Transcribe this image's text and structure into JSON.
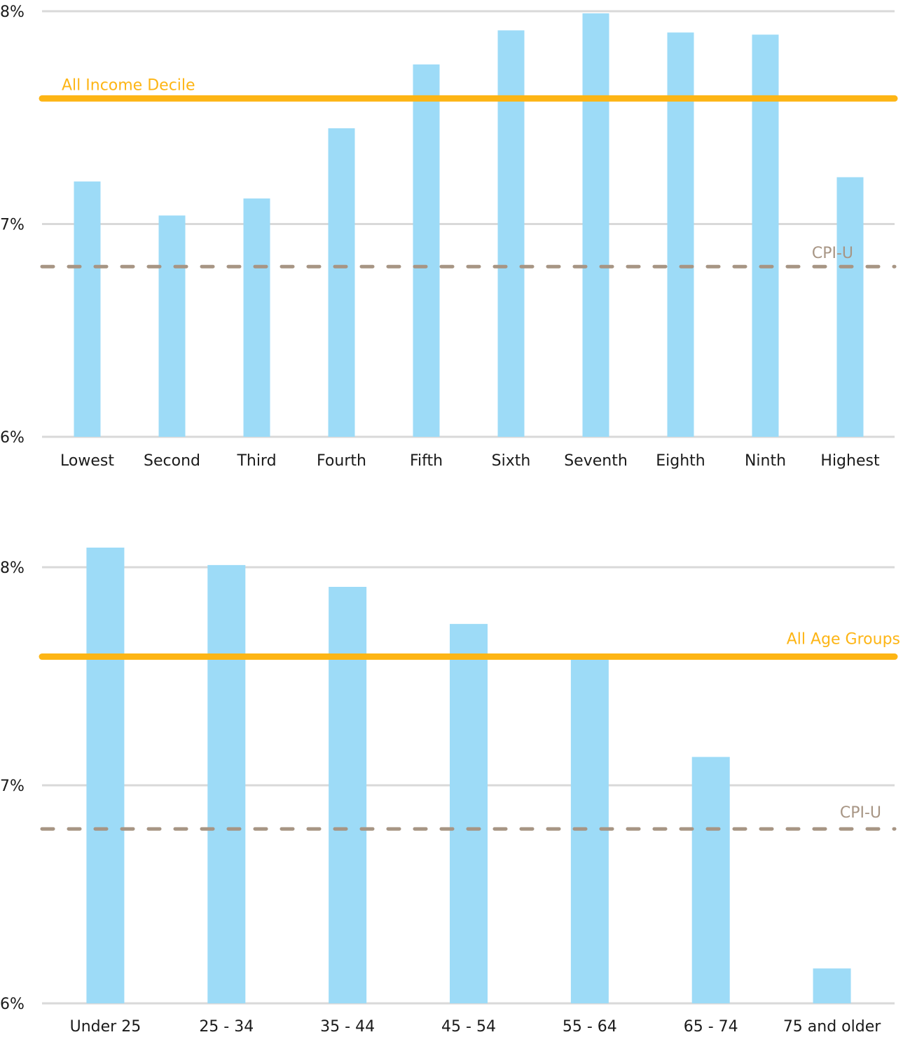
{
  "colors": {
    "bar": "#9DDBF7",
    "average_line": "#FDB515",
    "cpi_line": "#A79584",
    "grid": "#D9D9D9",
    "text": "#1a1a1a"
  },
  "chart_data": [
    {
      "type": "bar",
      "title": "",
      "xlabel": "",
      "ylabel": "",
      "ylim": [
        6,
        8
      ],
      "yticks": [
        6,
        7,
        8
      ],
      "ytick_labels": [
        "6%",
        "7%",
        "8%"
      ],
      "grid": true,
      "categories": [
        "Lowest",
        "Second",
        "Third",
        "Fourth",
        "Fifth",
        "Sixth",
        "Seventh",
        "Eighth",
        "Ninth",
        "Highest"
      ],
      "values": [
        7.2,
        7.04,
        7.12,
        7.45,
        7.75,
        7.91,
        7.99,
        7.9,
        7.89,
        7.22
      ],
      "reference_lines": [
        {
          "name": "All Income Decile",
          "label": "All Income Decile",
          "value": 7.59,
          "style": "solid",
          "label_position": "left"
        },
        {
          "name": "CPI-U",
          "label": "CPI-U",
          "value": 6.8,
          "style": "dashed",
          "label_position": "right"
        }
      ]
    },
    {
      "type": "bar",
      "title": "",
      "xlabel": "",
      "ylabel": "",
      "ylim": [
        6,
        8
      ],
      "yticks": [
        6,
        7,
        8
      ],
      "ytick_labels": [
        "6%",
        "7%",
        "8%"
      ],
      "grid": true,
      "categories": [
        "Under 25",
        "25 - 34",
        "35 - 44",
        "45 - 54",
        "55 - 64",
        "65 - 74",
        "75 and older"
      ],
      "values": [
        8.09,
        8.01,
        7.91,
        7.74,
        7.6,
        7.13,
        6.16
      ],
      "reference_lines": [
        {
          "name": "All Age Groups",
          "label": "All Age Groups",
          "value": 7.59,
          "style": "solid",
          "label_position": "right"
        },
        {
          "name": "CPI-U",
          "label": "CPI-U",
          "value": 6.8,
          "style": "dashed",
          "label_position": "right"
        }
      ]
    }
  ]
}
